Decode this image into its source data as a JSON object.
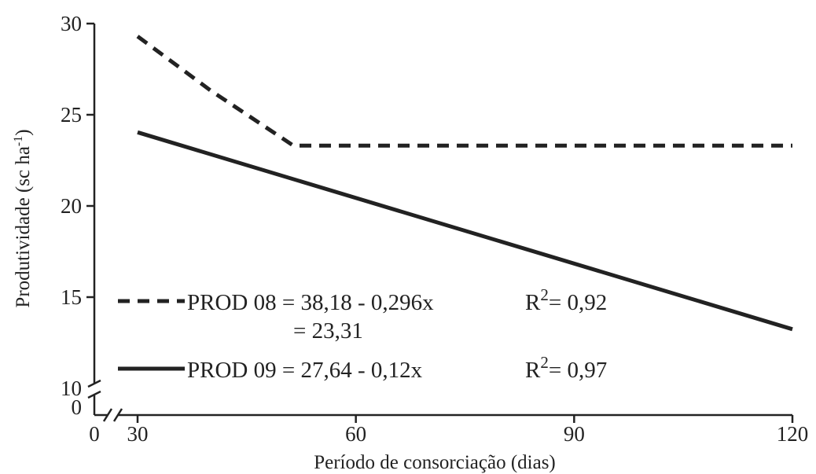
{
  "chart_data": {
    "type": "line",
    "xlabel": "Período de consorciação (dias)",
    "ylabel_main": "Produtividade (sc ha",
    "ylabel_sup": "-1",
    "ylabel_close": ")",
    "x_ticks": [
      "0",
      "30",
      "60",
      "90",
      "120"
    ],
    "y_ticks": [
      "0",
      "10",
      "15",
      "20",
      "25",
      "30"
    ],
    "xlim": [
      30,
      120
    ],
    "ylim": [
      10,
      30
    ],
    "axis_breaks": true,
    "grid": false,
    "legend_position": "bottom-left",
    "series": [
      {
        "name": "PROD 08",
        "style": "dashed",
        "color": "#222222",
        "x": [
          30,
          40,
          51.4,
          120
        ],
        "y": [
          29.3,
          26.34,
          23.31,
          23.31
        ],
        "equation": "= 38,18 - 0,296x",
        "r2_label": "R",
        "r2_sup": "2",
        "r2_value": "= 0,92",
        "equation_line2": "= 23,31"
      },
      {
        "name": "PROD 09",
        "style": "solid",
        "color": "#222222",
        "x": [
          30,
          120
        ],
        "y": [
          24.04,
          13.24
        ],
        "equation": "= 27,64 - 0,12x",
        "r2_label": "R",
        "r2_sup": "2",
        "r2_value": "= 0,97"
      }
    ]
  }
}
